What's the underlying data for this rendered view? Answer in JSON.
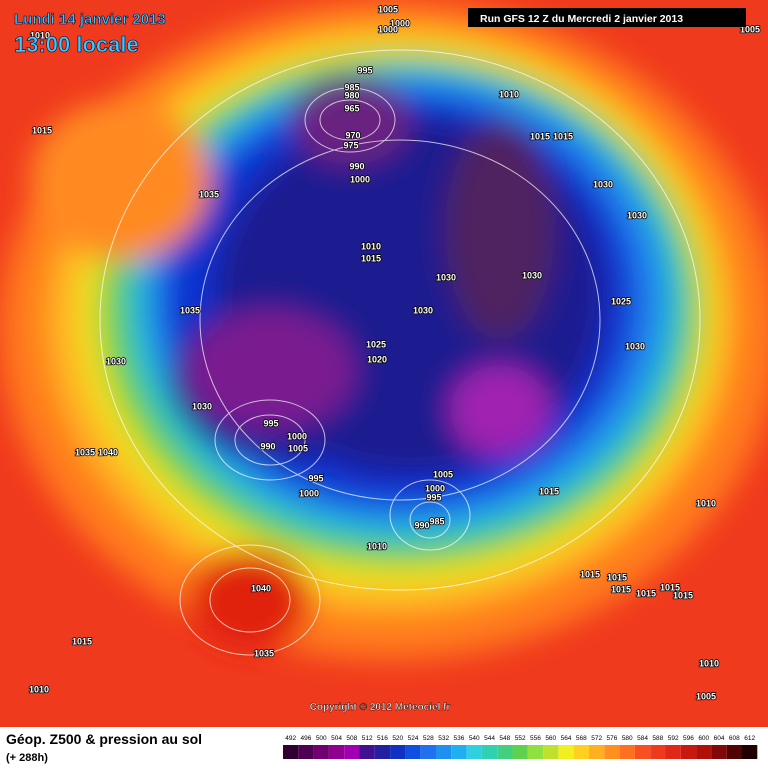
{
  "header": {
    "date": "Lundi 14 janvier 2013",
    "time": "13:00 locale",
    "run": "Run GFS 12 Z du Mercredi 2 janvier 2013"
  },
  "map": {
    "pressure_labels": [
      1005,
      1000,
      1000,
      1010,
      995,
      985,
      980,
      965,
      970,
      975,
      1010,
      1015,
      1015,
      1015,
      1035,
      990,
      1000,
      1030,
      1030,
      1010,
      1015,
      1030,
      1030,
      1035,
      1030,
      1025,
      1025,
      1030,
      1020,
      1030,
      1030,
      995,
      1000,
      990,
      1005,
      1035,
      1040,
      1005,
      1000,
      995,
      995,
      1000,
      1015,
      1010,
      990,
      985,
      1010,
      1015,
      1015,
      1015,
      1015,
      1015,
      1015,
      1040,
      1015,
      1035,
      1010,
      1005,
      1010,
      1005
    ],
    "copyright": "Copyright © 2012 Meteociel.fr"
  },
  "legend": {
    "title": "Géop. Z500 & pression au sol",
    "lead_time": "(+ 288h)",
    "scale": [
      492,
      496,
      500,
      504,
      508,
      512,
      516,
      520,
      524,
      528,
      532,
      536,
      540,
      544,
      548,
      552,
      556,
      560,
      564,
      568,
      572,
      576,
      580,
      584,
      588,
      592,
      596,
      600,
      604,
      608,
      612
    ]
  }
}
